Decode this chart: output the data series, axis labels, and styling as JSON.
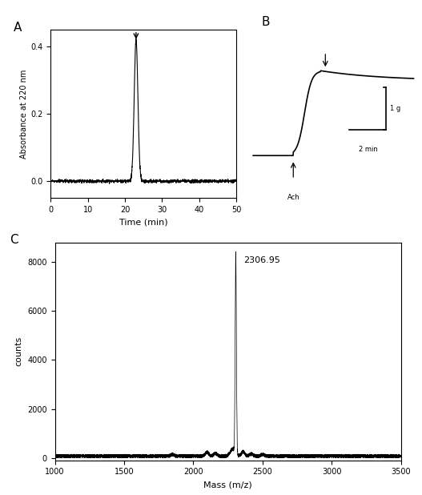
{
  "panel_A": {
    "label": "A",
    "xlabel": "Time (min)",
    "ylabel": "Absorbance at 220 nm",
    "xlim": [
      0,
      50
    ],
    "ylim": [
      -0.05,
      0.45
    ],
    "yticks": [
      0.0,
      0.2,
      0.4
    ],
    "xticks": [
      0,
      10,
      20,
      30,
      40,
      50
    ],
    "peak_time": 23.0,
    "peak_height": 0.42
  },
  "panel_B": {
    "label": "B",
    "scale_bar_x_label": "2 min",
    "scale_bar_y_label": "1 g",
    "ach_label": "Ach"
  },
  "panel_C": {
    "label": "C",
    "xlabel": "Mass (m/z)",
    "ylabel": "counts",
    "xlim": [
      1000,
      3500
    ],
    "ylim": [
      -100,
      8800
    ],
    "yticks": [
      0,
      2000,
      4000,
      6000,
      8000
    ],
    "xticks": [
      1000,
      1500,
      2000,
      2500,
      3000,
      3500
    ],
    "peak_mass": 2306.95,
    "peak_counts": 8200,
    "peak_label": "2306.95",
    "noise_level": 150
  },
  "background_color": "#ffffff",
  "text_color": "#000000",
  "line_color": "#000000"
}
